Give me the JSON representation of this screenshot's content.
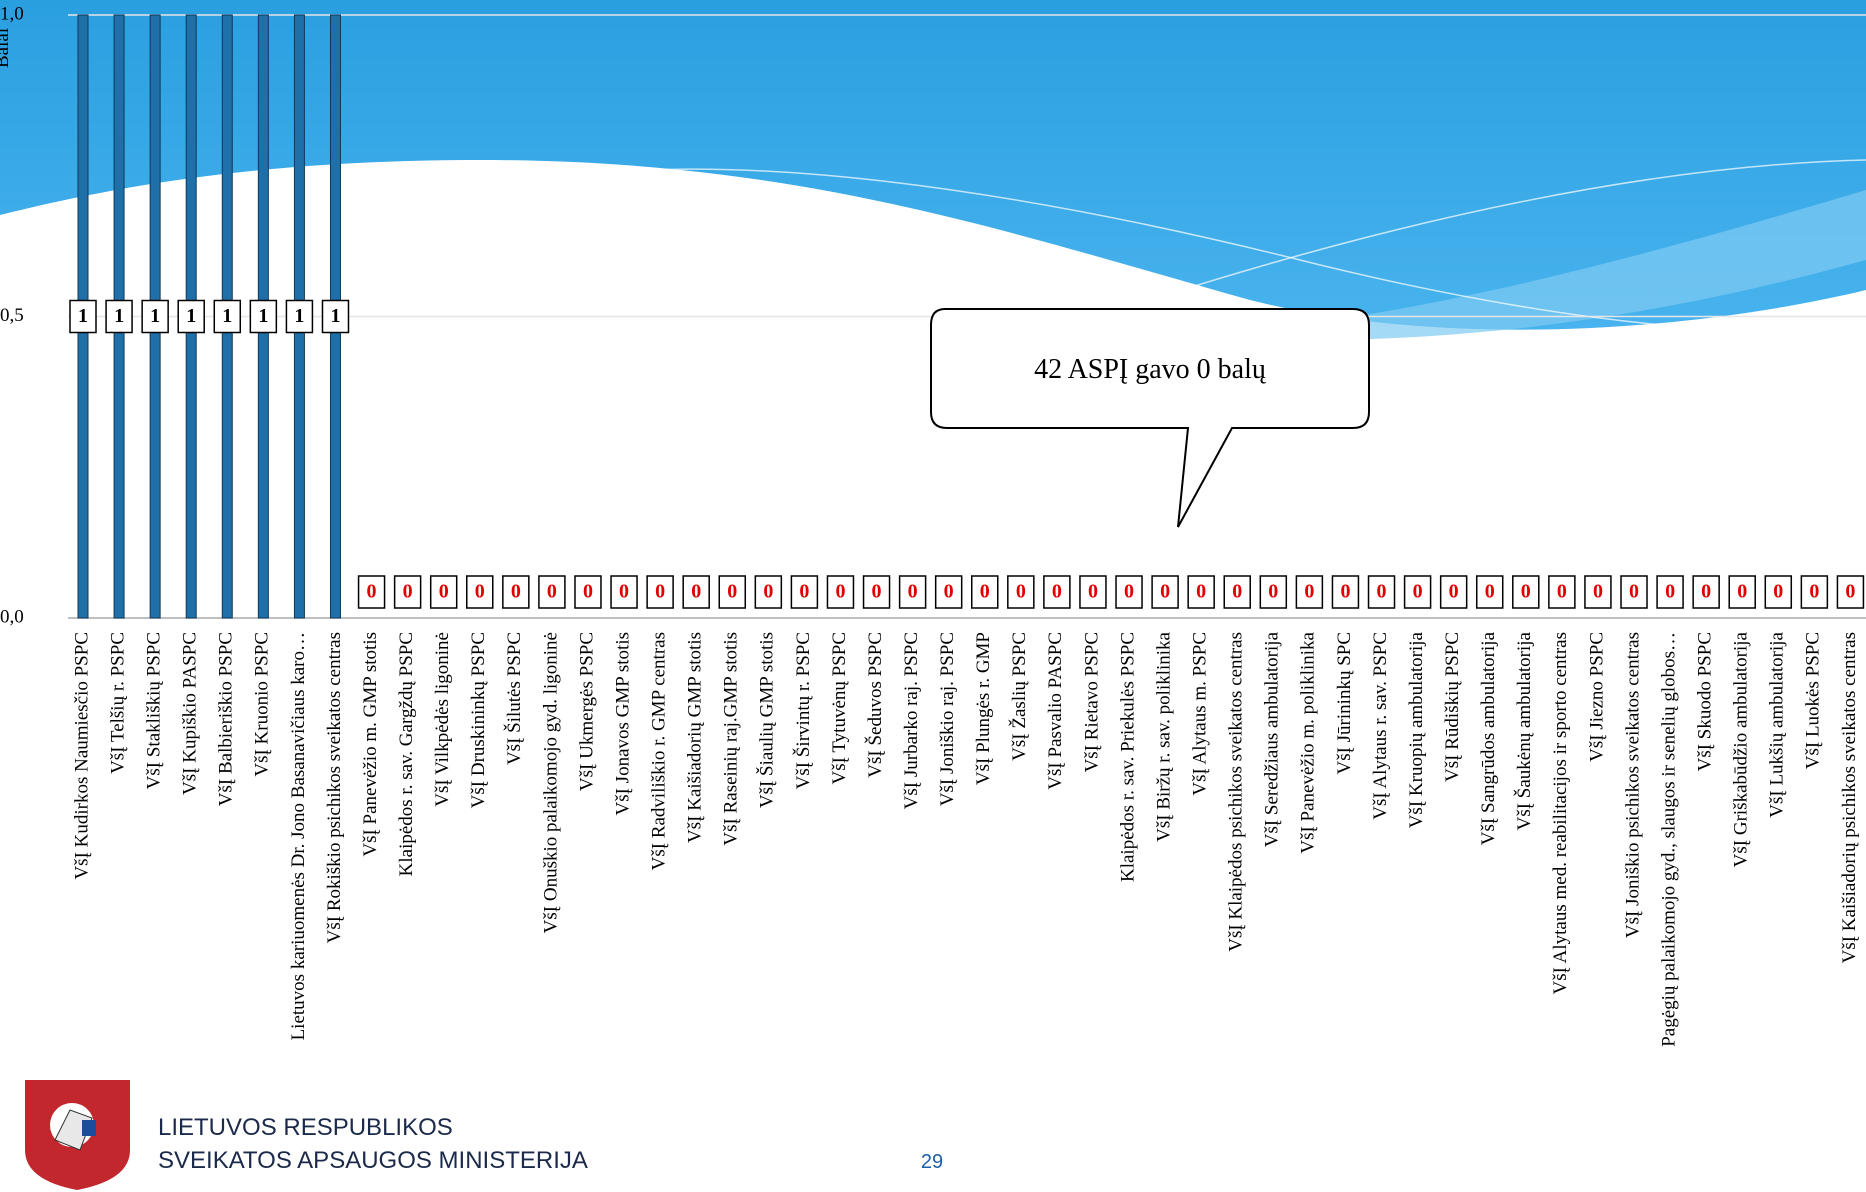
{
  "chart_data": {
    "type": "bar",
    "y_label": "Balai",
    "categories": [
      "VšĮ Kudirkos Naumiesčio PSPC",
      "VšĮ Telšių r. PSPC",
      "VšĮ Stakliškių PSPC",
      "VšĮ Kupiškio PASPC",
      "VšĮ Balbieriškio PSPC",
      "VšĮ Kruonio PSPC",
      "Lietuvos kariuomenės Dr. Jono Basanavičiaus karo…",
      "VšĮ Rokiškio psichikos sveikatos centras",
      "VšĮ Panevėžio m. GMP stotis",
      "Klaipėdos r. sav. Gargždų PSPC",
      "VšĮ Vilkpėdės ligoninė",
      "VšĮ Druskininkų PSPC",
      "VšĮ Šilutės PSPC",
      "VšĮ Onuškio palaikomojo gyd. ligoninė",
      "VšĮ Ukmergės PSPC",
      "VšĮ Jonavos GMP stotis",
      "VšĮ Radviliškio r. GMP centras",
      "VšĮ Kaišiadorių GMP stotis",
      "VšĮ Raseinių raj.GMP stotis",
      "VšĮ Šiaulių GMP stotis",
      "VšĮ Širvintų r. PSPC",
      "VšĮ Tytuvėnų PSPC",
      "VšĮ Šeduvos PSPC",
      "VšĮ Jurbarko raj. PSPC",
      "VšĮ Joniškio raj. PSPC",
      "VšĮ Plungės r. GMP",
      "VšĮ Žaslių PSPC",
      "VšĮ Pasvalio PASPC",
      "VšĮ Rietavo PSPC",
      "Klaipėdos r. sav. Priekulės PSPC",
      "VšĮ Biržų r. sav. poliklinika",
      "VšĮ Alytaus m. PSPC",
      "VšĮ Klaipėdos psichikos sveikatos centras",
      "VšĮ Seredžiaus ambulatorija",
      "VšĮ Panevėžio m. poliklinika",
      "VšĮ Jūrininkų SPC",
      "VšĮ Alytaus r. sav. PSPC",
      "VšĮ Kruopių ambulatorija",
      "VšĮ Rūdiškių PSPC",
      "VšĮ Sangrūdos ambulatorija",
      "VšĮ Šaukėnų ambulatorija",
      "VšĮ Alytaus med. reabilitacijos ir sporto centras",
      "VšĮ Jiezno PSPC",
      "VšĮ Joniškio psichikos sveikatos centras",
      "Pagėgių palaikomojo gyd., slaugos ir senelių globos…",
      "VšĮ Skuodo PSPC",
      "VšĮ Griškabūdžio ambulatorija",
      "VšĮ Lukšių ambulatorija",
      "VšĮ Luokės PSPC",
      "VšĮ Kaišiadorių psichikos sveikatos centras"
    ],
    "values": [
      1,
      1,
      1,
      1,
      1,
      1,
      1,
      1,
      0,
      0,
      0,
      0,
      0,
      0,
      0,
      0,
      0,
      0,
      0,
      0,
      0,
      0,
      0,
      0,
      0,
      0,
      0,
      0,
      0,
      0,
      0,
      0,
      0,
      0,
      0,
      0,
      0,
      0,
      0,
      0,
      0,
      0,
      0,
      0,
      0,
      0,
      0,
      0,
      0,
      0
    ],
    "color": "#1f6fa8",
    "ylim": [
      0,
      1
    ],
    "yticks": [
      {
        "value": 0,
        "label": "0,0"
      },
      {
        "value": 0.5,
        "label": "0,5"
      },
      {
        "value": 1,
        "label": "1,0"
      }
    ],
    "grid": true,
    "annotation": "42 ASPĮ gavo 0 balų"
  },
  "footer": {
    "org_line1": "LIETUVOS RESPUBLIKOS",
    "org_line2": "SVEIKATOS APSAUGOS MINISTERIJA",
    "page_number": "29"
  }
}
